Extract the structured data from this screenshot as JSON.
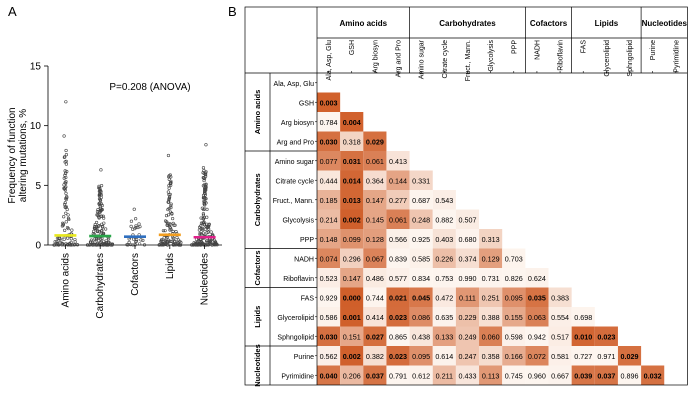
{
  "panel_a": {
    "label": "A"
  },
  "panel_b": {
    "label": "B"
  },
  "colors": {
    "dot": "#444444",
    "mean_bars": [
      "#e8e81e",
      "#2aa64a",
      "#2f6fbf",
      "#f29d1e",
      "#e0208a"
    ],
    "heat_low": "#fdf5ef",
    "heat_high": "#d05f2a",
    "header_border": "#000000"
  },
  "chart_data": [
    {
      "type": "scatter",
      "title": "P=0.208 (ANOVA)",
      "ylabel_lines": [
        "Frequency of function",
        "altering mutations, %"
      ],
      "xlabel": "",
      "ylim": [
        0,
        15
      ],
      "yticks": [
        "0",
        "5",
        "10",
        "15"
      ],
      "categories": [
        "Amino acids",
        "Carbohydrates",
        "Cofactors",
        "Lipids",
        "Nucleotides"
      ],
      "means": [
        0.8,
        0.75,
        0.7,
        0.85,
        0.65
      ],
      "point_counts": [
        95,
        140,
        30,
        110,
        170
      ],
      "max_points": [
        12.0,
        6.3,
        3.0,
        7.5,
        8.4
      ]
    },
    {
      "type": "heatmap",
      "title": "",
      "groups": [
        {
          "name": "Amino acids",
          "size": 4
        },
        {
          "name": "Carbohydrates",
          "size": 5
        },
        {
          "name": "Cofactors",
          "size": 2
        },
        {
          "name": "Lipids",
          "size": 3
        },
        {
          "name": "Nucleotides",
          "size": 2
        }
      ],
      "col_labels": [
        "Ala, Asp, Glu",
        "GSH",
        "Arg biosyn",
        "Arg and Pro",
        "Amino sugar",
        "Citrate cycle",
        "Fruct., Mann.",
        "Glycolysis",
        "PPP",
        "NADH",
        "Riboflavin",
        "FAS",
        "Glycerolipid",
        "Sphngolipid",
        "Purine",
        "Pyrimidine"
      ],
      "row_labels": [
        "Ala, Asp, Glu",
        "GSH",
        "Arg biosyn",
        "Arg and Pro",
        "Amino sugar",
        "Citrate cycle",
        "Fruct., Mann.",
        "Glycolysis",
        "PPP",
        "NADH",
        "Riboflavin",
        "FAS",
        "Glycerolipid",
        "Sphngolipid",
        "Purine",
        "Pyrimidine"
      ],
      "values": [
        [],
        [
          "0.003"
        ],
        [
          "0.784",
          "0.004"
        ],
        [
          "0.030",
          "0.318",
          "0.029"
        ],
        [
          "0.077",
          "0.031",
          "0.061",
          "0.413"
        ],
        [
          "0.444",
          "0.014",
          "0.364",
          "0.144",
          "0.331"
        ],
        [
          "0.185",
          "0.013",
          "0.147",
          "0.277",
          "0.687",
          "0.543"
        ],
        [
          "0.214",
          "0.002",
          "0.145",
          "0.061",
          "0.248",
          "0.882",
          "0.507"
        ],
        [
          "0.148",
          "0.099",
          "0.128",
          "0.566",
          "0.925",
          "0.403",
          "0.680",
          "0.313"
        ],
        [
          "0.074",
          "0.296",
          "0.067",
          "0.839",
          "0.585",
          "0.226",
          "0.374",
          "0.129",
          "0.703"
        ],
        [
          "0.523",
          "0.147",
          "0.486",
          "0.577",
          "0.834",
          "0.753",
          "0.990",
          "0.731",
          "0.826",
          "0.624"
        ],
        [
          "0.929",
          "0.000",
          "0.744",
          "0.021",
          "0.045",
          "0.472",
          "0.111",
          "0.251",
          "0.095",
          "0.035",
          "0.383"
        ],
        [
          "0.586",
          "0.001",
          "0.414",
          "0.023",
          "0.086",
          "0.635",
          "0.229",
          "0.388",
          "0.155",
          "0.063",
          "0.554",
          "0.698"
        ],
        [
          "0.030",
          "0.151",
          "0.027",
          "0.865",
          "0.438",
          "0.133",
          "0.249",
          "0.060",
          "0.598",
          "0.942",
          "0.517",
          "0.010",
          "0.023"
        ],
        [
          "0.562",
          "0.002",
          "0.382",
          "0.023",
          "0.095",
          "0.614",
          "0.247",
          "0.358",
          "0.166",
          "0.072",
          "0.581",
          "0.727",
          "0.971",
          "0.029"
        ],
        [
          "0.040",
          "0.206",
          "0.037",
          "0.791",
          "0.612",
          "0.211",
          "0.433",
          "0.113",
          "0.745",
          "0.960",
          "0.667",
          "0.039",
          "0.037",
          "0.896",
          "0.032"
        ]
      ],
      "bold_threshold": 0.05
    }
  ]
}
